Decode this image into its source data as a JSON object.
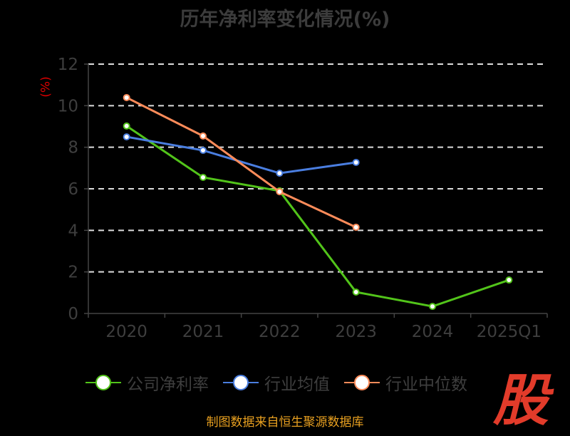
{
  "chart_data": {
    "type": "line",
    "title": "历年净利率变化情况(%)",
    "ylabel": "(%)",
    "xlabel": "",
    "categories": [
      "2020",
      "2021",
      "2022",
      "2023",
      "2024",
      "2025Q1"
    ],
    "ylim": [
      0,
      12
    ],
    "yticks": [
      "0",
      "2",
      "4",
      "6",
      "8",
      "10",
      "12"
    ],
    "grid": true,
    "legend_position": "bottom",
    "series": [
      {
        "name": "公司净利率",
        "color": "#52c41a",
        "values": [
          9.02,
          6.55,
          5.9,
          1.03,
          0.34,
          1.61
        ]
      },
      {
        "name": "行业均值",
        "color": "#4a7ee0",
        "values": [
          8.5,
          7.85,
          6.75,
          7.27,
          null,
          null
        ]
      },
      {
        "name": "行业中位数",
        "color": "#ff8c5a",
        "values": [
          10.39,
          8.54,
          5.86,
          4.15,
          null,
          null
        ]
      }
    ]
  },
  "source": "制图数据来自恒生聚源数据库",
  "logo_text": "股"
}
